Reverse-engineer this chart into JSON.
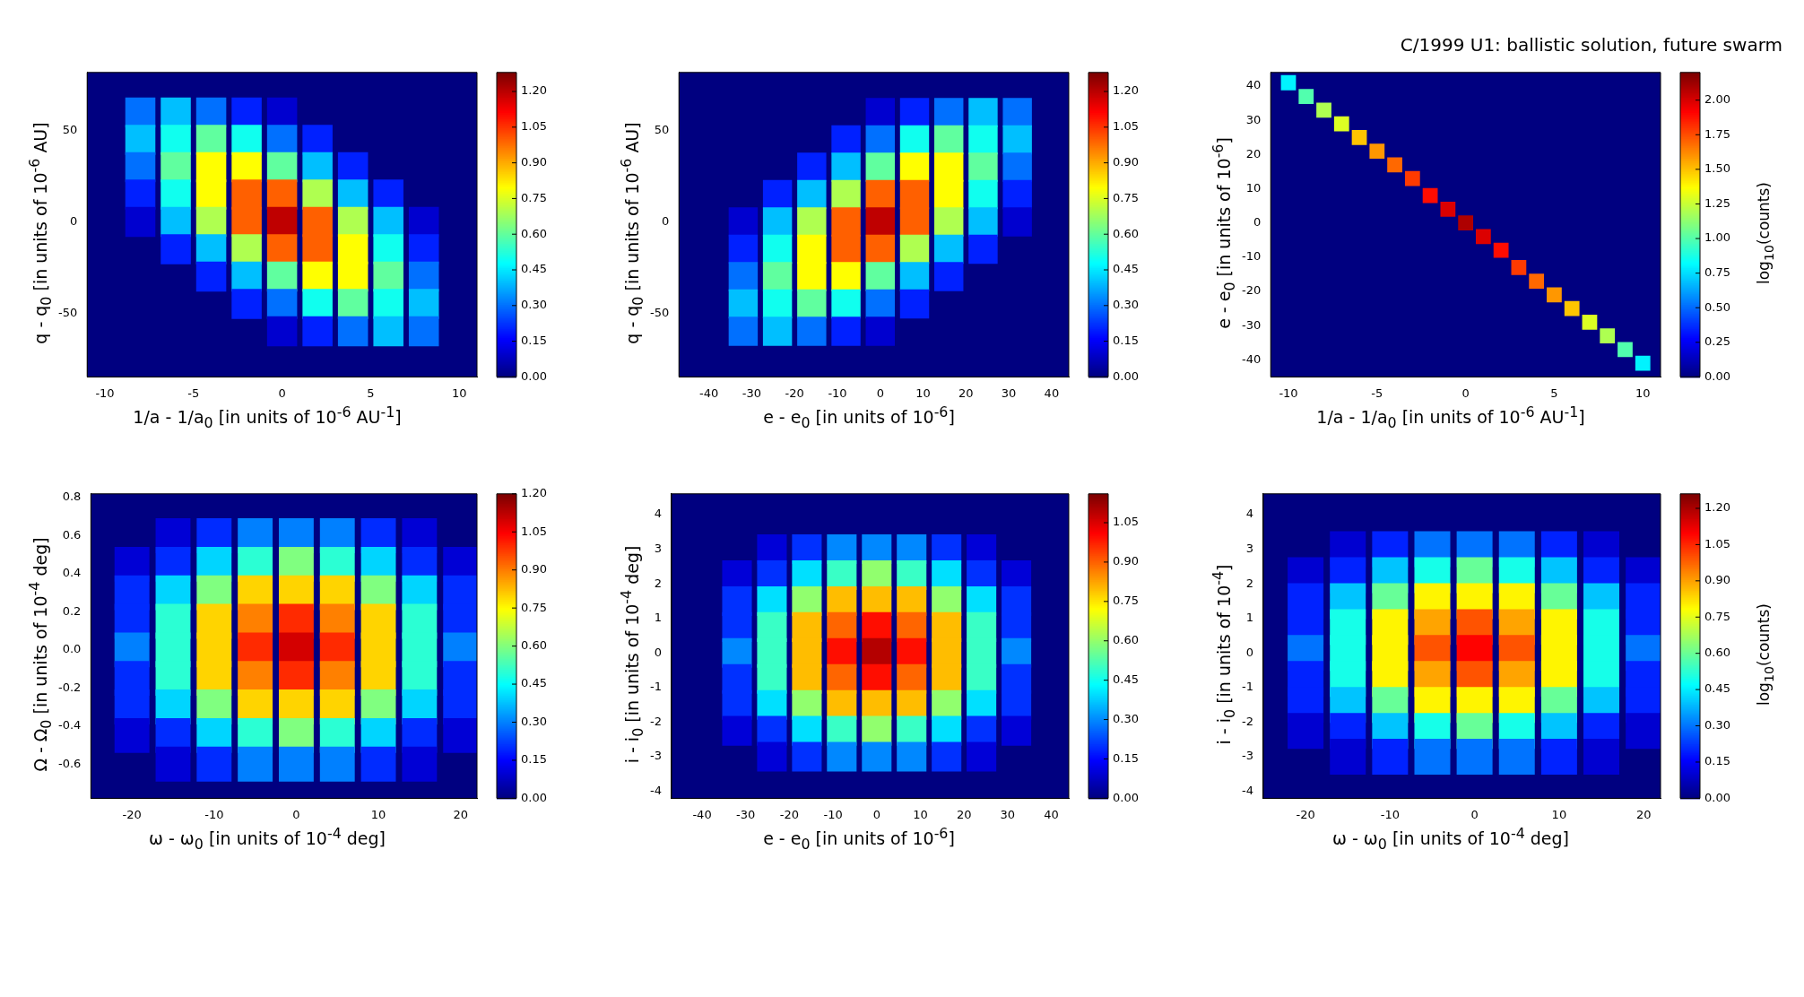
{
  "chart_data": [
    {
      "type": "scatter",
      "marker": "square",
      "xlabel": "1/a - 1/a$_{0}$ [in units of 10$^{-6}$ AU$^{-1}$]",
      "ylabel": "q - q$_{0}$ [in units of 10$^{-6}$ AU]",
      "xlim": [
        -11,
        11
      ],
      "xticks": [
        -10,
        -5,
        0,
        5,
        10
      ],
      "ylim": [
        -85,
        82
      ],
      "yticks": [
        -50,
        0,
        50
      ],
      "clim": [
        0,
        1.28
      ],
      "cticks": [
        {
          "value": 0,
          "label": "0.00"
        },
        {
          "value": 0.15,
          "label": "0.15"
        },
        {
          "value": 0.3,
          "label": "0.30"
        },
        {
          "value": 0.45,
          "label": "0.45"
        },
        {
          "value": 0.6,
          "label": "0.60"
        },
        {
          "value": 0.75,
          "label": "0.75"
        },
        {
          "value": 0.9,
          "label": "0.90"
        },
        {
          "value": 1.05,
          "label": "1.05"
        },
        {
          "value": 1.2,
          "label": "1.20"
        }
      ],
      "x": [
        -8,
        -6,
        -4,
        -2,
        0,
        -8,
        -6,
        -4,
        -2,
        0,
        2,
        -8,
        -6,
        -4,
        -2,
        0,
        2,
        4,
        -8,
        -6,
        -4,
        -2,
        0,
        2,
        4,
        6,
        -8,
        -6,
        -4,
        -2,
        0,
        2,
        4,
        6,
        8,
        -6,
        -4,
        -2,
        0,
        2,
        4,
        6,
        8,
        -4,
        -2,
        0,
        2,
        4,
        6,
        8,
        -2,
        0,
        2,
        4,
        6,
        8,
        0,
        2,
        4,
        6,
        8
      ],
      "values": [
        60,
        60,
        60,
        60,
        60,
        45,
        45,
        45,
        45,
        45,
        45,
        30,
        30,
        30,
        30,
        30,
        30,
        30,
        15,
        15,
        15,
        15,
        15,
        15,
        15,
        15,
        0,
        0,
        0,
        0,
        0,
        0,
        0,
        0,
        0,
        -15,
        -15,
        -15,
        -15,
        -15,
        -15,
        -15,
        -15,
        -30,
        -30,
        -30,
        -30,
        -30,
        -30,
        -30,
        -45,
        -45,
        -45,
        -45,
        -45,
        -45,
        -60,
        -60,
        -60,
        -60,
        -60
      ],
      "cvalues": [
        0.3,
        0.4,
        0.3,
        0.2,
        0.1,
        0.4,
        0.5,
        0.6,
        0.5,
        0.3,
        0.2,
        0.3,
        0.6,
        0.8,
        0.8,
        0.6,
        0.4,
        0.2,
        0.2,
        0.5,
        0.8,
        1.0,
        1.0,
        0.7,
        0.4,
        0.2,
        0.1,
        0.4,
        0.7,
        1.0,
        1.2,
        1.0,
        0.7,
        0.4,
        0.1,
        0.2,
        0.4,
        0.7,
        1.0,
        1.0,
        0.8,
        0.5,
        0.2,
        0.2,
        0.4,
        0.6,
        0.8,
        0.8,
        0.6,
        0.3,
        0.2,
        0.3,
        0.5,
        0.6,
        0.5,
        0.4,
        0.1,
        0.2,
        0.3,
        0.4,
        0.3
      ]
    },
    {
      "type": "scatter",
      "marker": "square",
      "xlabel": "e - e$_{0}$ [in units of 10$^{-6}$]",
      "ylabel": "q - q$_{0}$ [in units of 10$^{-6}$ AU]",
      "xlim": [
        -47,
        44
      ],
      "xticks": [
        -40,
        -30,
        -20,
        -10,
        0,
        10,
        20,
        30,
        40
      ],
      "ylim": [
        -85,
        82
      ],
      "yticks": [
        -50,
        0,
        50
      ],
      "clim": [
        0,
        1.28
      ],
      "cticks": [
        {
          "value": 0,
          "label": "0.00"
        },
        {
          "value": 0.15,
          "label": "0.15"
        },
        {
          "value": 0.3,
          "label": "0.30"
        },
        {
          "value": 0.45,
          "label": "0.45"
        },
        {
          "value": 0.6,
          "label": "0.60"
        },
        {
          "value": 0.75,
          "label": "0.75"
        },
        {
          "value": 0.9,
          "label": "0.90"
        },
        {
          "value": 1.05,
          "label": "1.05"
        },
        {
          "value": 1.2,
          "label": "1.20"
        }
      ],
      "x": [
        32,
        24,
        16,
        8,
        0,
        32,
        24,
        16,
        8,
        0,
        -8,
        32,
        24,
        16,
        8,
        0,
        -8,
        -16,
        32,
        24,
        16,
        8,
        0,
        -8,
        -16,
        -24,
        32,
        24,
        16,
        8,
        0,
        -8,
        -16,
        -24,
        -32,
        24,
        16,
        8,
        0,
        -8,
        -16,
        -24,
        -32,
        16,
        8,
        0,
        -8,
        -16,
        -24,
        -32,
        8,
        0,
        -8,
        -16,
        -24,
        -32,
        0,
        -8,
        -16,
        -24,
        -32
      ],
      "values": [
        60,
        60,
        60,
        60,
        60,
        45,
        45,
        45,
        45,
        45,
        45,
        30,
        30,
        30,
        30,
        30,
        30,
        30,
        15,
        15,
        15,
        15,
        15,
        15,
        15,
        15,
        0,
        0,
        0,
        0,
        0,
        0,
        0,
        0,
        0,
        -15,
        -15,
        -15,
        -15,
        -15,
        -15,
        -15,
        -15,
        -30,
        -30,
        -30,
        -30,
        -30,
        -30,
        -30,
        -45,
        -45,
        -45,
        -45,
        -45,
        -45,
        -60,
        -60,
        -60,
        -60,
        -60
      ],
      "cvalues": [
        0.3,
        0.4,
        0.3,
        0.2,
        0.1,
        0.4,
        0.5,
        0.6,
        0.5,
        0.3,
        0.2,
        0.3,
        0.6,
        0.8,
        0.8,
        0.6,
        0.4,
        0.2,
        0.2,
        0.5,
        0.8,
        1.0,
        1.0,
        0.7,
        0.4,
        0.2,
        0.1,
        0.4,
        0.7,
        1.0,
        1.2,
        1.0,
        0.7,
        0.4,
        0.1,
        0.2,
        0.4,
        0.7,
        1.0,
        1.0,
        0.8,
        0.5,
        0.2,
        0.2,
        0.4,
        0.6,
        0.8,
        0.8,
        0.6,
        0.3,
        0.2,
        0.3,
        0.5,
        0.6,
        0.5,
        0.4,
        0.1,
        0.2,
        0.3,
        0.4,
        0.3
      ]
    },
    {
      "type": "scatter",
      "marker": "square",
      "title": "C/1999 U1:  ballistic solution, future swarm",
      "xlabel": "1/a - 1/a$_{0}$ [in units of 10$^{-6}$ AU$^{-1}$]",
      "ylabel": "e - e$_{0}$ [in units of 10$^{-6}$]",
      "clabel": "log$_{10}$(counts)",
      "xlim": [
        -11,
        11
      ],
      "xticks": [
        -10,
        -5,
        0,
        5,
        10
      ],
      "ylim": [
        -45,
        44
      ],
      "yticks": [
        -40,
        -30,
        -20,
        -10,
        0,
        10,
        20,
        30,
        40
      ],
      "clim": [
        0,
        2.2
      ],
      "cticks": [
        {
          "value": 0,
          "label": "0.00"
        },
        {
          "value": 0.25,
          "label": "0.25"
        },
        {
          "value": 0.5,
          "label": "0.50"
        },
        {
          "value": 0.75,
          "label": "0.75"
        },
        {
          "value": 1,
          "label": "1.00"
        },
        {
          "value": 1.25,
          "label": "1.25"
        },
        {
          "value": 1.5,
          "label": "1.50"
        },
        {
          "value": 1.75,
          "label": "1.75"
        },
        {
          "value": 2,
          "label": "2.00"
        }
      ],
      "x": [
        -10,
        -9,
        -8,
        -7,
        -6,
        -5,
        -4,
        -3,
        -2,
        -1,
        0,
        1,
        2,
        3,
        4,
        5,
        6,
        7,
        8,
        9,
        10
      ],
      "values": [
        41,
        37,
        33,
        29,
        25,
        21,
        17,
        13,
        8,
        4,
        0,
        -4,
        -8,
        -13,
        -17,
        -21,
        -25,
        -29,
        -33,
        -37,
        -41
      ],
      "cvalues": [
        0.8,
        1.0,
        1.2,
        1.3,
        1.5,
        1.6,
        1.7,
        1.8,
        1.9,
        2.0,
        2.1,
        2.0,
        1.9,
        1.8,
        1.7,
        1.6,
        1.5,
        1.3,
        1.2,
        1.0,
        0.8
      ]
    },
    {
      "type": "scatter",
      "marker": "square",
      "xlabel": "ω - ω$_{0}$ [in units of 10$^{-4}$ deg]",
      "ylabel": "Ω - Ω$_{0}$ [in units of 10$^{-4}$ deg]",
      "xlim": [
        -25,
        22
      ],
      "xticks": [
        -20,
        -10,
        0,
        10,
        20
      ],
      "ylim": [
        -0.78,
        0.82
      ],
      "yticks": [
        {
          "value": -0.6,
          "label": "-0.6"
        },
        {
          "value": -0.4,
          "label": "-0.4"
        },
        {
          "value": -0.2,
          "label": "-0.2"
        },
        {
          "value": 0,
          "label": "0.0"
        },
        {
          "value": 0.2,
          "label": "0.2"
        },
        {
          "value": 0.4,
          "label": "0.4"
        },
        {
          "value": 0.6,
          "label": "0.6"
        },
        {
          "value": 0.8,
          "label": "0.8"
        }
      ],
      "clim": [
        0,
        1.2
      ],
      "cticks": [
        {
          "value": 0,
          "label": "0.00"
        },
        {
          "value": 0.15,
          "label": "0.15"
        },
        {
          "value": 0.3,
          "label": "0.30"
        },
        {
          "value": 0.45,
          "label": "0.45"
        },
        {
          "value": 0.6,
          "label": "0.60"
        },
        {
          "value": 0.75,
          "label": "0.75"
        },
        {
          "value": 0.9,
          "label": "0.90"
        },
        {
          "value": 1.05,
          "label": "1.05"
        },
        {
          "value": 1.2,
          "label": "1.20"
        }
      ],
      "x": [
        -15,
        -10,
        -5,
        0,
        5,
        10,
        15,
        -20,
        -15,
        -10,
        -5,
        0,
        5,
        10,
        15,
        20,
        -20,
        -15,
        -10,
        -5,
        0,
        5,
        10,
        15,
        20,
        -20,
        -15,
        -10,
        -5,
        0,
        5,
        10,
        15,
        20,
        -20,
        -15,
        -10,
        -5,
        0,
        5,
        10,
        15,
        20,
        -20,
        -15,
        -10,
        -5,
        0,
        5,
        10,
        15,
        20,
        -20,
        -15,
        -10,
        -5,
        0,
        5,
        10,
        15,
        20,
        -20,
        -15,
        -10,
        -5,
        0,
        5,
        10,
        15,
        20,
        -15,
        -10,
        -5,
        0,
        5,
        10,
        15
      ],
      "values": [
        0.6,
        0.6,
        0.6,
        0.6,
        0.6,
        0.6,
        0.6,
        0.45,
        0.45,
        0.45,
        0.45,
        0.45,
        0.45,
        0.45,
        0.45,
        0.45,
        0.3,
        0.3,
        0.3,
        0.3,
        0.3,
        0.3,
        0.3,
        0.3,
        0.3,
        0.15,
        0.15,
        0.15,
        0.15,
        0.15,
        0.15,
        0.15,
        0.15,
        0.15,
        0,
        0,
        0,
        0,
        0,
        0,
        0,
        0,
        0,
        -0.15,
        -0.15,
        -0.15,
        -0.15,
        -0.15,
        -0.15,
        -0.15,
        -0.15,
        -0.15,
        -0.3,
        -0.3,
        -0.3,
        -0.3,
        -0.3,
        -0.3,
        -0.3,
        -0.3,
        -0.3,
        -0.45,
        -0.45,
        -0.45,
        -0.45,
        -0.45,
        -0.45,
        -0.45,
        -0.45,
        -0.45,
        -0.6,
        -0.6,
        -0.6,
        -0.6,
        -0.6,
        -0.6,
        -0.6
      ],
      "cvalues": [
        0.1,
        0.2,
        0.3,
        0.3,
        0.3,
        0.2,
        0.1,
        0.1,
        0.2,
        0.4,
        0.5,
        0.6,
        0.5,
        0.4,
        0.2,
        0.1,
        0.2,
        0.4,
        0.6,
        0.8,
        0.8,
        0.8,
        0.6,
        0.4,
        0.2,
        0.2,
        0.5,
        0.8,
        0.9,
        1.0,
        0.9,
        0.8,
        0.5,
        0.2,
        0.3,
        0.5,
        0.8,
        1.0,
        1.1,
        1.0,
        0.8,
        0.5,
        0.3,
        0.2,
        0.5,
        0.8,
        0.9,
        1.0,
        0.9,
        0.8,
        0.5,
        0.2,
        0.2,
        0.4,
        0.6,
        0.8,
        0.8,
        0.8,
        0.6,
        0.4,
        0.2,
        0.1,
        0.2,
        0.4,
        0.5,
        0.6,
        0.5,
        0.4,
        0.2,
        0.1,
        0.1,
        0.2,
        0.3,
        0.3,
        0.3,
        0.2,
        0.1
      ]
    },
    {
      "type": "scatter",
      "marker": "square",
      "xlabel": "e - e$_{0}$ [in units of 10$^{-6}$]",
      "ylabel": "i - i$_{0}$ [in units of 10$^{-4}$ deg]",
      "xlim": [
        -47,
        44
      ],
      "xticks": [
        -40,
        -30,
        -20,
        -10,
        0,
        10,
        20,
        30,
        40
      ],
      "ylim": [
        -4.2,
        4.6
      ],
      "yticks": [
        -4,
        -3,
        -2,
        -1,
        0,
        1,
        2,
        3,
        4
      ],
      "clim": [
        0,
        1.16
      ],
      "cticks": [
        {
          "value": 0,
          "label": "0.00"
        },
        {
          "value": 0.15,
          "label": "0.15"
        },
        {
          "value": 0.3,
          "label": "0.30"
        },
        {
          "value": 0.45,
          "label": "0.45"
        },
        {
          "value": 0.6,
          "label": "0.60"
        },
        {
          "value": 0.75,
          "label": "0.75"
        },
        {
          "value": 0.9,
          "label": "0.90"
        },
        {
          "value": 1.05,
          "label": "1.05"
        }
      ],
      "x": [
        -24,
        -16,
        -8,
        0,
        8,
        16,
        24,
        -32,
        -24,
        -16,
        -8,
        0,
        8,
        16,
        24,
        32,
        -32,
        -24,
        -16,
        -8,
        0,
        8,
        16,
        24,
        32,
        -32,
        -24,
        -16,
        -8,
        0,
        8,
        16,
        24,
        32,
        -32,
        -24,
        -16,
        -8,
        0,
        8,
        16,
        24,
        32,
        -32,
        -24,
        -16,
        -8,
        0,
        8,
        16,
        24,
        32,
        -32,
        -24,
        -16,
        -8,
        0,
        8,
        16,
        24,
        32,
        -32,
        -24,
        -16,
        -8,
        0,
        8,
        16,
        24,
        32,
        -24,
        -16,
        -8,
        0,
        8,
        16,
        24
      ],
      "values": [
        3,
        3,
        3,
        3,
        3,
        3,
        3,
        2.25,
        2.25,
        2.25,
        2.25,
        2.25,
        2.25,
        2.25,
        2.25,
        2.25,
        1.5,
        1.5,
        1.5,
        1.5,
        1.5,
        1.5,
        1.5,
        1.5,
        1.5,
        0.75,
        0.75,
        0.75,
        0.75,
        0.75,
        0.75,
        0.75,
        0.75,
        0.75,
        0,
        0,
        0,
        0,
        0,
        0,
        0,
        0,
        0,
        -0.75,
        -0.75,
        -0.75,
        -0.75,
        -0.75,
        -0.75,
        -0.75,
        -0.75,
        -0.75,
        -1.5,
        -1.5,
        -1.5,
        -1.5,
        -1.5,
        -1.5,
        -1.5,
        -1.5,
        -1.5,
        -2.25,
        -2.25,
        -2.25,
        -2.25,
        -2.25,
        -2.25,
        -2.25,
        -2.25,
        -2.25,
        -3,
        -3,
        -3,
        -3,
        -3,
        -3,
        -3
      ],
      "cvalues": [
        0.1,
        0.2,
        0.3,
        0.3,
        0.3,
        0.2,
        0.1,
        0.1,
        0.2,
        0.4,
        0.5,
        0.6,
        0.5,
        0.4,
        0.2,
        0.1,
        0.2,
        0.4,
        0.6,
        0.8,
        0.8,
        0.8,
        0.6,
        0.4,
        0.2,
        0.2,
        0.5,
        0.8,
        0.9,
        1.0,
        0.9,
        0.8,
        0.5,
        0.2,
        0.3,
        0.5,
        0.8,
        1.0,
        1.1,
        1.0,
        0.8,
        0.5,
        0.3,
        0.2,
        0.5,
        0.8,
        0.9,
        1.0,
        0.9,
        0.8,
        0.5,
        0.2,
        0.2,
        0.4,
        0.6,
        0.8,
        0.8,
        0.8,
        0.6,
        0.4,
        0.2,
        0.1,
        0.2,
        0.4,
        0.5,
        0.6,
        0.5,
        0.4,
        0.2,
        0.1,
        0.1,
        0.2,
        0.3,
        0.3,
        0.3,
        0.2,
        0.1
      ]
    },
    {
      "type": "scatter",
      "marker": "square",
      "xlabel": "ω - ω$_{0}$ [in units of 10$^{-4}$ deg]",
      "ylabel": "i - i$_{0}$ [in units of 10$^{-4}$]",
      "clabel": "log$_{10}$(counts)",
      "xlim": [
        -25,
        22
      ],
      "xticks": [
        -20,
        -10,
        0,
        10,
        20
      ],
      "ylim": [
        -4.2,
        4.6
      ],
      "yticks": [
        -4,
        -3,
        -2,
        -1,
        0,
        1,
        2,
        3,
        4
      ],
      "clim": [
        0,
        1.26
      ],
      "cticks": [
        {
          "value": 0,
          "label": "0.00"
        },
        {
          "value": 0.15,
          "label": "0.15"
        },
        {
          "value": 0.3,
          "label": "0.30"
        },
        {
          "value": 0.45,
          "label": "0.45"
        },
        {
          "value": 0.6,
          "label": "0.60"
        },
        {
          "value": 0.75,
          "label": "0.75"
        },
        {
          "value": 0.9,
          "label": "0.90"
        },
        {
          "value": 1.05,
          "label": "1.05"
        },
        {
          "value": 1.2,
          "label": "1.20"
        }
      ],
      "x": [
        -15,
        -10,
        -5,
        0,
        5,
        10,
        15,
        -20,
        -15,
        -10,
        -5,
        0,
        5,
        10,
        15,
        20,
        -20,
        -15,
        -10,
        -5,
        0,
        5,
        10,
        15,
        20,
        -20,
        -15,
        -10,
        -5,
        0,
        5,
        10,
        15,
        20,
        -20,
        -15,
        -10,
        -5,
        0,
        5,
        10,
        15,
        20,
        -20,
        -15,
        -10,
        -5,
        0,
        5,
        10,
        15,
        20,
        -20,
        -15,
        -10,
        -5,
        0,
        5,
        10,
        15,
        20,
        -20,
        -15,
        -10,
        -5,
        0,
        5,
        10,
        15,
        20,
        -15,
        -10,
        -5,
        0,
        5,
        10,
        15
      ],
      "values": [
        3,
        3,
        3,
        3,
        3,
        3,
        3,
        2.25,
        2.25,
        2.25,
        2.25,
        2.25,
        2.25,
        2.25,
        2.25,
        2.25,
        1.5,
        1.5,
        1.5,
        1.5,
        1.5,
        1.5,
        1.5,
        1.5,
        1.5,
        0.75,
        0.75,
        0.75,
        0.75,
        0.75,
        0.75,
        0.75,
        0.75,
        0.75,
        0,
        0,
        0,
        0,
        0,
        0,
        0,
        0,
        0,
        -0.75,
        -0.75,
        -0.75,
        -0.75,
        -0.75,
        -0.75,
        -0.75,
        -0.75,
        -0.75,
        -1.5,
        -1.5,
        -1.5,
        -1.5,
        -1.5,
        -1.5,
        -1.5,
        -1.5,
        -1.5,
        -2.25,
        -2.25,
        -2.25,
        -2.25,
        -2.25,
        -2.25,
        -2.25,
        -2.25,
        -2.25,
        -3,
        -3,
        -3,
        -3,
        -3,
        -3,
        -3
      ],
      "cvalues": [
        0.1,
        0.2,
        0.3,
        0.3,
        0.3,
        0.2,
        0.1,
        0.1,
        0.2,
        0.4,
        0.5,
        0.6,
        0.5,
        0.4,
        0.2,
        0.1,
        0.2,
        0.4,
        0.6,
        0.8,
        0.8,
        0.8,
        0.6,
        0.4,
        0.2,
        0.2,
        0.5,
        0.8,
        0.9,
        1.0,
        0.9,
        0.8,
        0.5,
        0.2,
        0.3,
        0.5,
        0.8,
        1.0,
        1.1,
        1.0,
        0.8,
        0.5,
        0.3,
        0.2,
        0.5,
        0.8,
        0.9,
        1.0,
        0.9,
        0.8,
        0.5,
        0.2,
        0.2,
        0.4,
        0.6,
        0.8,
        0.8,
        0.8,
        0.6,
        0.4,
        0.2,
        0.1,
        0.2,
        0.4,
        0.5,
        0.6,
        0.5,
        0.4,
        0.2,
        0.1,
        0.1,
        0.2,
        0.3,
        0.3,
        0.3,
        0.2,
        0.1
      ]
    }
  ]
}
